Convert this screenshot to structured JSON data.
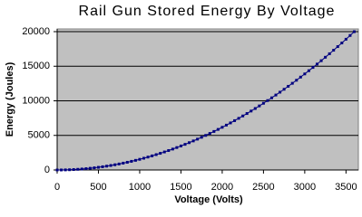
{
  "chart_data": {
    "type": "scatter",
    "title": "Rail Gun Stored Energy By Voltage",
    "x_label": "Voltage (Volts)",
    "y_label": "Energy (Joules)",
    "x": [
      0,
      50,
      100,
      150,
      200,
      250,
      300,
      350,
      400,
      450,
      500,
      550,
      600,
      650,
      700,
      750,
      800,
      850,
      900,
      950,
      1000,
      1050,
      1100,
      1150,
      1200,
      1250,
      1300,
      1350,
      1400,
      1450,
      1500,
      1550,
      1600,
      1650,
      1700,
      1750,
      1800,
      1850,
      1900,
      1950,
      2000,
      2050,
      2100,
      2150,
      2200,
      2250,
      2300,
      2350,
      2400,
      2450,
      2500,
      2550,
      2600,
      2650,
      2700,
      2750,
      2800,
      2850,
      2900,
      2950,
      3000,
      3050,
      3100,
      3150,
      3200,
      3250,
      3300,
      3350,
      3400,
      3450,
      3500,
      3550,
      3600
    ],
    "values": [
      0,
      4,
      15,
      35,
      62,
      96,
      139,
      189,
      247,
      312,
      386,
      467,
      555,
      652,
      756,
      868,
      988,
      1115,
      1250,
      1393,
      1543,
      1701,
      1867,
      2041,
      2222,
      2411,
      2608,
      2812,
      3024,
      3244,
      3472,
      3707,
      3950,
      4201,
      4459,
      4725,
      4999,
      5281,
      5570,
      5867,
      6172,
      6485,
      6805,
      7133,
      7468,
      7812,
      8163,
      8521,
      8888,
      9262,
      9644,
      10033,
      10431,
      10836,
      11248,
      11669,
      12097,
      12533,
      12976,
      13427,
      13887,
      14354,
      14828,
      15310,
      15800,
      16298,
      16803,
      17316,
      17837,
      18365,
      18902,
      19446,
      19997
    ],
    "color": "#000080",
    "plot_background": "#c0c0c0",
    "grid": true,
    "xlim": [
      0,
      3650
    ],
    "xticks": [
      0,
      500,
      1000,
      1500,
      2000,
      2500,
      3000,
      3500
    ],
    "ylim": [
      0,
      20000
    ],
    "yticks": [
      0,
      5000,
      10000,
      15000,
      20000
    ]
  }
}
